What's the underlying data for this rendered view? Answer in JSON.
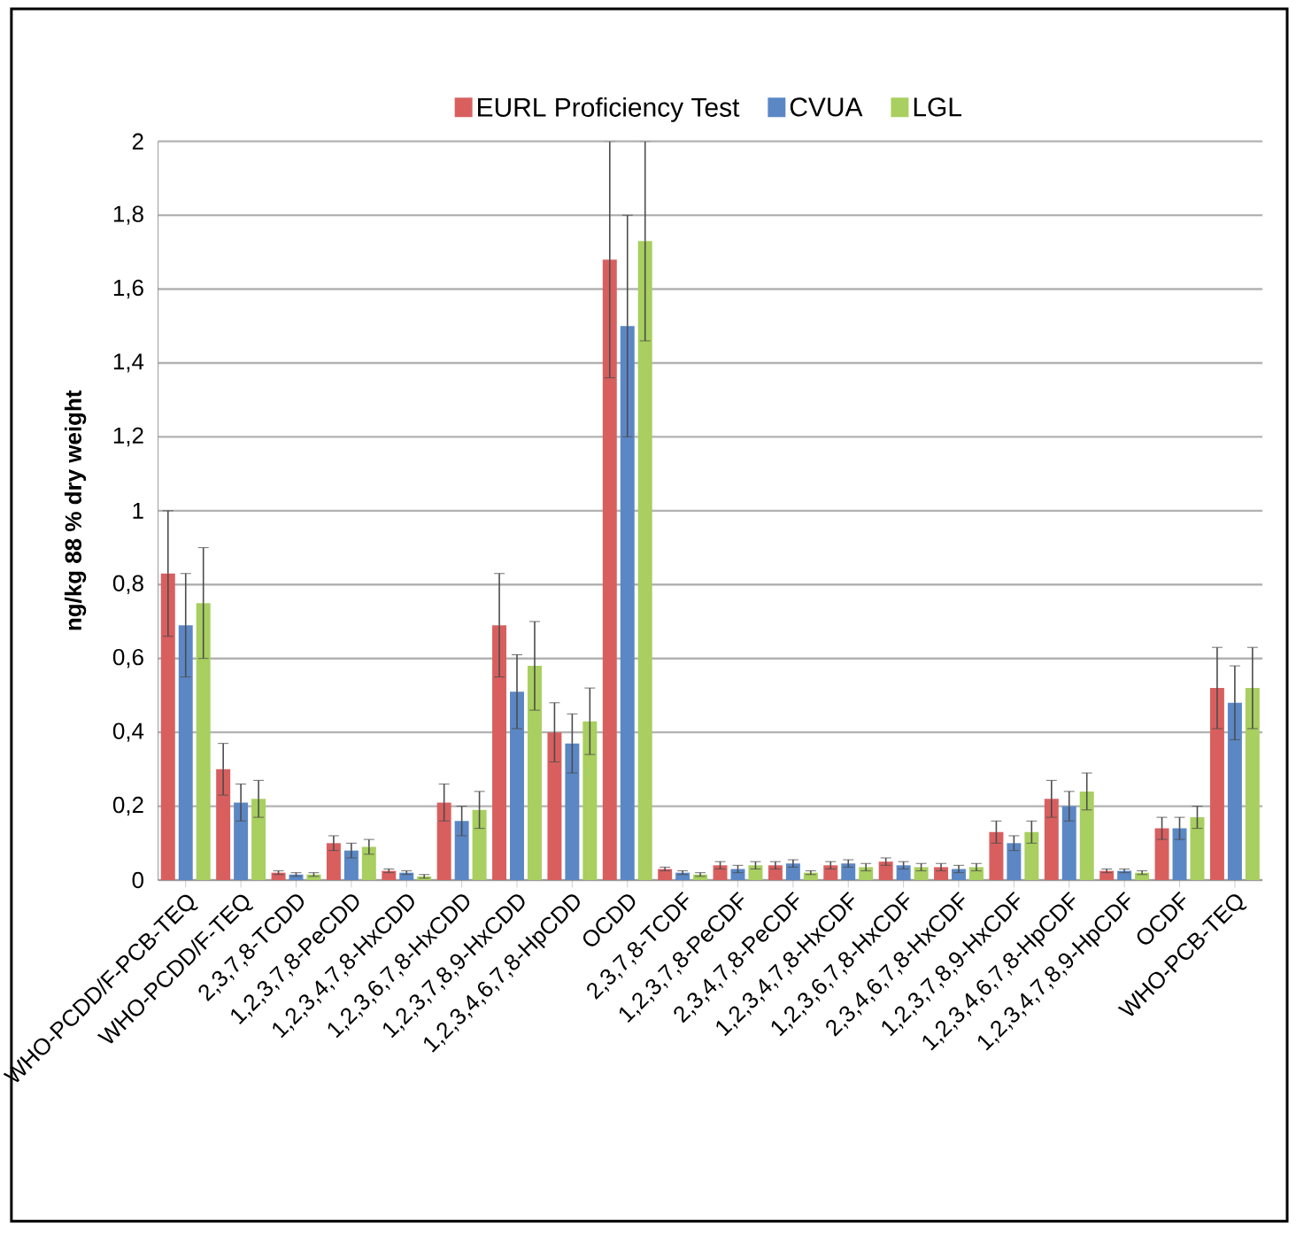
{
  "chart_data": {
    "type": "bar",
    "ylabel": "ng/kg 88 % dry weight",
    "categories": [
      "WHO-PCDD/F-PCB-TEQ",
      "WHO-PCDD/F-TEQ",
      "2,3,7,8-TCDD",
      "1,2,3,7,8-PeCDD",
      "1,2,3,4,7,8-HxCDD",
      "1,2,3,6,7,8-HxCDD",
      "1,2,3,7,8,9-HxCDD",
      "1,2,3,4,6,7,8-HpCDD",
      "OCDD",
      "2,3,7,8-TCDF",
      "1,2,3,7,8-PeCDF",
      "2,3,4,7,8-PeCDF",
      "1,2,3,4,7,8-HxCDF",
      "1,2,3,6,7,8-HxCDF",
      "2,3,4,6,7,8-HxCDF",
      "1,2,3,7,8,9-HxCDF",
      "1,2,3,4,6,7,8-HpCDF",
      "1,2,3,4,7,8,9-HpCDF",
      "OCDF",
      "WHO-PCB-TEQ"
    ],
    "series": [
      {
        "name": "EURL Proficiency Test",
        "color": "#d95f5f",
        "values": [
          0.83,
          0.3,
          0.02,
          0.1,
          0.025,
          0.21,
          0.69,
          0.4,
          1.68,
          0.03,
          0.04,
          0.04,
          0.04,
          0.05,
          0.035,
          0.13,
          0.22,
          0.025,
          0.14,
          0.52
        ],
        "errors": [
          0.17,
          0.07,
          0.005,
          0.02,
          0.005,
          0.05,
          0.14,
          0.08,
          0.32,
          0.005,
          0.01,
          0.01,
          0.01,
          0.01,
          0.01,
          0.03,
          0.05,
          0.005,
          0.03,
          0.11
        ]
      },
      {
        "name": "CVUA",
        "color": "#5b87c5",
        "values": [
          0.69,
          0.21,
          0.015,
          0.08,
          0.02,
          0.16,
          0.51,
          0.37,
          1.5,
          0.02,
          0.03,
          0.045,
          0.045,
          0.04,
          0.03,
          0.1,
          0.2,
          0.025,
          0.14,
          0.48
        ],
        "errors": [
          0.14,
          0.05,
          0.005,
          0.02,
          0.005,
          0.04,
          0.1,
          0.08,
          0.3,
          0.005,
          0.01,
          0.01,
          0.01,
          0.01,
          0.01,
          0.02,
          0.04,
          0.005,
          0.03,
          0.1
        ]
      },
      {
        "name": "LGL",
        "color": "#a8cf5f",
        "values": [
          0.75,
          0.22,
          0.015,
          0.09,
          0.01,
          0.19,
          0.58,
          0.43,
          1.73,
          0.015,
          0.04,
          0.02,
          0.035,
          0.035,
          0.035,
          0.13,
          0.24,
          0.02,
          0.17,
          0.52
        ],
        "errors": [
          0.15,
          0.05,
          0.005,
          0.02,
          0.005,
          0.05,
          0.12,
          0.09,
          0.27,
          0.005,
          0.01,
          0.005,
          0.01,
          0.01,
          0.01,
          0.03,
          0.05,
          0.005,
          0.03,
          0.11
        ]
      }
    ],
    "ylim": [
      0,
      2
    ],
    "yticks": [
      0,
      {
        "value": 0.2,
        "label": "0,2"
      },
      {
        "value": 0.4,
        "label": "0,4"
      },
      {
        "value": 0.6,
        "label": "0,6"
      },
      {
        "value": 0.8,
        "label": "0,8"
      },
      1,
      {
        "value": 1.2,
        "label": "1,2"
      },
      {
        "value": 1.4,
        "label": "1,4"
      },
      {
        "value": 1.6,
        "label": "1,6"
      },
      {
        "value": 1.8,
        "label": "1,8"
      },
      2
    ],
    "grid": "y",
    "legend": "top"
  }
}
